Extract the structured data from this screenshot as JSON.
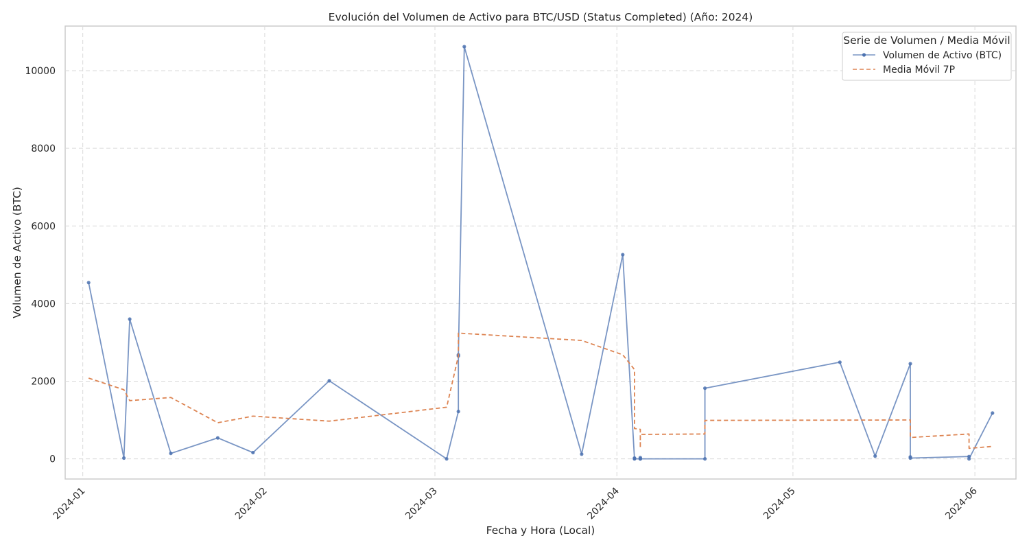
{
  "chart_data": {
    "type": "line",
    "title": "Evolución del Volumen de Activo para BTC/USD (Status Completed) (Año: 2024)",
    "xlabel": "Fecha y Hora (Local)",
    "ylabel": "Volumen de Activo (BTC)",
    "x_type": "date",
    "xlim": [
      "2023-12-29",
      "2024-06-08"
    ],
    "ylim": [
      -520,
      11150
    ],
    "x_ticks": [
      "2024-01-01",
      "2024-02-01",
      "2024-03-01",
      "2024-04-01",
      "2024-05-01",
      "2024-06-01"
    ],
    "x_tick_labels": [
      "2024-01",
      "2024-02",
      "2024-03",
      "2024-04",
      "2024-05",
      "2024-06"
    ],
    "y_ticks": [
      0,
      2000,
      4000,
      6000,
      8000,
      10000
    ],
    "y_tick_labels": [
      "0",
      "2000",
      "4000",
      "6000",
      "8000",
      "10000"
    ],
    "grid": true,
    "legend": {
      "title": "Serie de Volumen / Media Móvil",
      "position": "top-right"
    },
    "series": [
      {
        "name": "Volumen de Activo (BTC)",
        "color": "#4c72b0",
        "style": "solid",
        "marker": "circle",
        "points": [
          [
            "2024-01-02",
            4540
          ],
          [
            "2024-01-08",
            20
          ],
          [
            "2024-01-09",
            3600
          ],
          [
            "2024-01-16",
            140
          ],
          [
            "2024-01-24",
            540
          ],
          [
            "2024-01-30",
            160
          ],
          [
            "2024-02-12",
            2010
          ],
          [
            "2024-03-03",
            0
          ],
          [
            "2024-03-05",
            1220
          ],
          [
            "2024-03-05",
            2650
          ],
          [
            "2024-03-05",
            2680
          ],
          [
            "2024-03-06",
            10620
          ],
          [
            "2024-03-26",
            120
          ],
          [
            "2024-04-02",
            5260
          ],
          [
            "2024-04-04",
            5
          ],
          [
            "2024-04-04",
            20
          ],
          [
            "2024-04-04",
            0
          ],
          [
            "2024-04-05",
            0
          ],
          [
            "2024-04-05",
            30
          ],
          [
            "2024-04-05",
            0
          ],
          [
            "2024-04-16",
            0
          ],
          [
            "2024-04-16",
            1820
          ],
          [
            "2024-05-09",
            2490
          ],
          [
            "2024-05-15",
            70
          ],
          [
            "2024-05-21",
            2450
          ],
          [
            "2024-05-21",
            50
          ],
          [
            "2024-05-21",
            20
          ],
          [
            "2024-05-31",
            60
          ],
          [
            "2024-05-31",
            0
          ],
          [
            "2024-06-04",
            1180
          ]
        ]
      },
      {
        "name": "Media Móvil 7P",
        "color": "#dd8452",
        "style": "dashed",
        "marker": "none",
        "points": [
          [
            "2024-01-02",
            2080
          ],
          [
            "2024-01-08",
            1780
          ],
          [
            "2024-01-09",
            1500
          ],
          [
            "2024-01-16",
            1580
          ],
          [
            "2024-01-24",
            930
          ],
          [
            "2024-01-30",
            1100
          ],
          [
            "2024-02-12",
            970
          ],
          [
            "2024-03-03",
            1330
          ],
          [
            "2024-03-05",
            2650
          ],
          [
            "2024-03-05",
            3240
          ],
          [
            "2024-03-26",
            3050
          ],
          [
            "2024-04-02",
            2680
          ],
          [
            "2024-04-04",
            2300
          ],
          [
            "2024-04-04",
            780
          ],
          [
            "2024-04-05",
            760
          ],
          [
            "2024-04-05",
            280
          ],
          [
            "2024-04-05",
            630
          ],
          [
            "2024-04-16",
            640
          ],
          [
            "2024-04-16",
            990
          ],
          [
            "2024-05-21",
            1000
          ],
          [
            "2024-05-21",
            550
          ],
          [
            "2024-05-31",
            640
          ],
          [
            "2024-05-31",
            270
          ],
          [
            "2024-06-04",
            320
          ]
        ]
      }
    ]
  }
}
